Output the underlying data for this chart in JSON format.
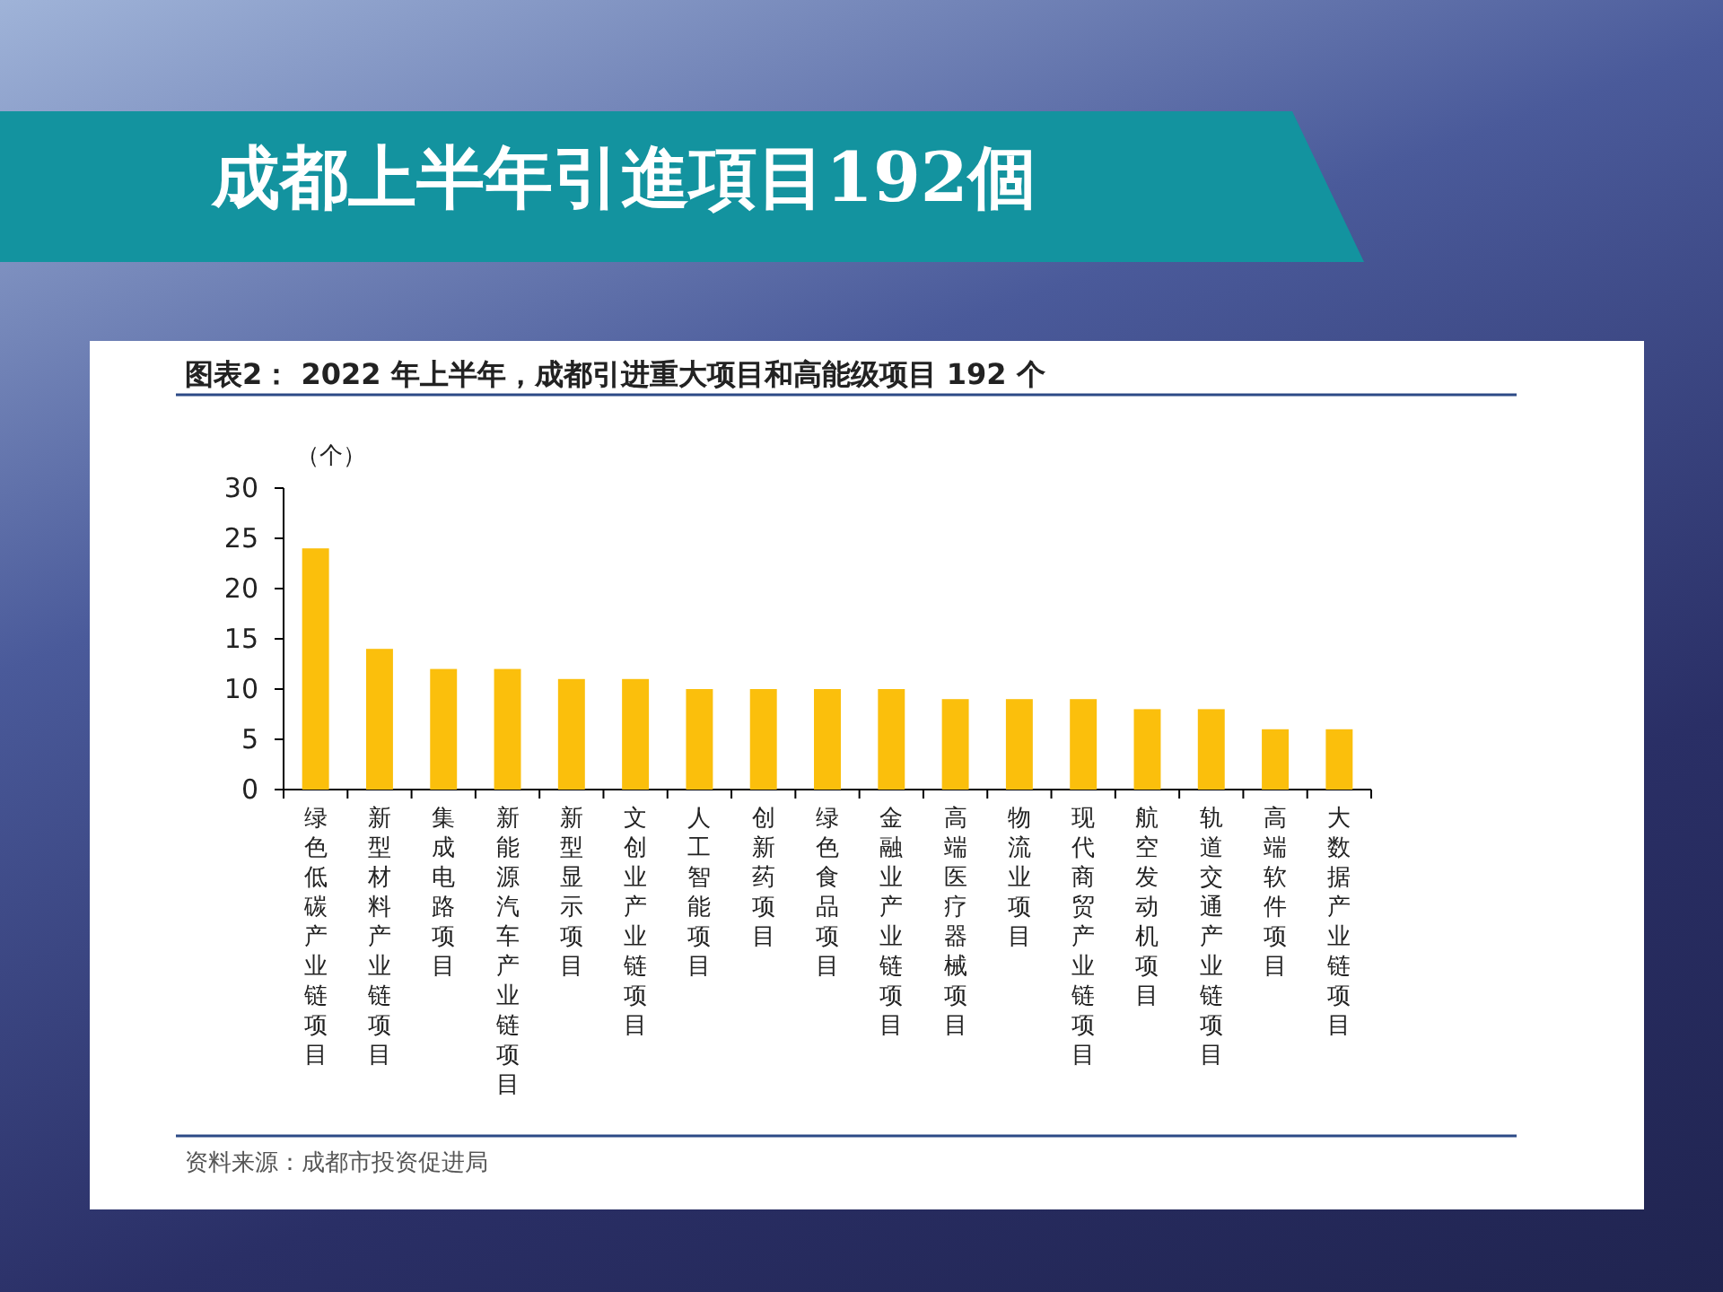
{
  "chart_data": {
    "type": "bar",
    "title": "成都上半年引進項目192個",
    "subtitle": "图表2：  2022 年上半年，成都引进重大项目和高能级项目 192 个",
    "ylabel": "（个）",
    "categories": [
      "绿色低碳产业链项目",
      "新型材料产业链项目",
      "集成电路项目",
      "新能源汽车产业链项目",
      "新型显示项目",
      "文创业产业链项目",
      "人工智能项目",
      "创新药项目",
      "绿色食品项目",
      "金融业产业链项目",
      "高端医疗器械项目",
      "物流业项目",
      "现代商贸产业链项目",
      "航空发动机项目",
      "轨道交通产业链项目",
      "高端软件项目",
      "大数据产业链项目"
    ],
    "values": [
      24,
      14,
      12,
      12,
      11,
      11,
      10,
      10,
      10,
      10,
      9,
      9,
      9,
      8,
      8,
      6,
      6
    ],
    "color": "#fbbf0c",
    "ylim": [
      0,
      30
    ],
    "yticks": [
      0,
      5,
      10,
      15,
      20,
      25,
      30
    ],
    "grid": false,
    "annotations": [
      "资料来源：成都市投资促进局"
    ]
  }
}
